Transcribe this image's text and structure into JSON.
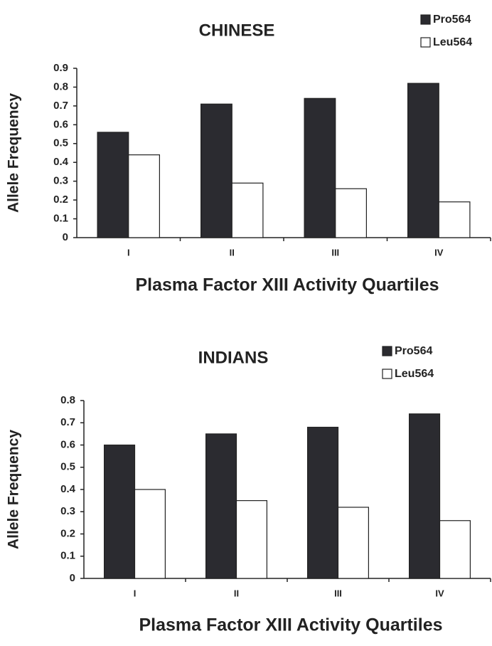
{
  "chart_data": [
    {
      "type": "bar",
      "title": "CHINESE",
      "x_label": "Plasma Factor XIII Activity Quartiles",
      "y_label": "Allele Frequency",
      "categories": [
        "I",
        "II",
        "III",
        "IV"
      ],
      "series": [
        {
          "name": "Pro564",
          "color": "#2b2b30",
          "values": [
            0.56,
            0.71,
            0.74,
            0.82
          ]
        },
        {
          "name": "Leu564",
          "color": "#ffffff",
          "values": [
            0.44,
            0.29,
            0.26,
            0.19
          ]
        }
      ],
      "ylim": [
        0,
        0.9
      ],
      "yticks": [
        0,
        0.1,
        0.2,
        0.3,
        0.4,
        0.5,
        0.6,
        0.7,
        0.8,
        0.9
      ],
      "legend": "top-right"
    },
    {
      "type": "bar",
      "title": "INDIANS",
      "x_label": "Plasma Factor XIII Activity Quartiles",
      "y_label": "Allele Frequency",
      "categories": [
        "I",
        "II",
        "III",
        "IV"
      ],
      "series": [
        {
          "name": "Pro564",
          "color": "#2b2b30",
          "values": [
            0.6,
            0.65,
            0.68,
            0.74
          ]
        },
        {
          "name": "Leu564",
          "color": "#ffffff",
          "values": [
            0.4,
            0.35,
            0.32,
            0.26
          ]
        }
      ],
      "ylim": [
        0,
        0.8
      ],
      "yticks": [
        0,
        0.1,
        0.2,
        0.3,
        0.4,
        0.5,
        0.6,
        0.7,
        0.8
      ],
      "legend": "top-right"
    }
  ]
}
